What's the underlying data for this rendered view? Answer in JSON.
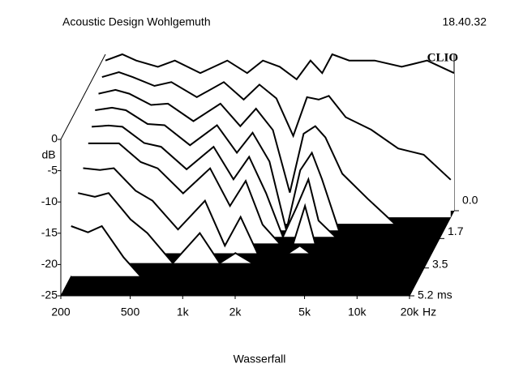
{
  "chart_data": {
    "type": "waterfall",
    "title": "Acoustic Design Wohlgemuth",
    "timestamp": "18.40.32",
    "logo": "CLIO",
    "caption": "Wasserfall",
    "x_unit": "Hz",
    "y_label": "dB",
    "z_unit": "ms",
    "xscale": "log",
    "xlim": [
      200,
      20000
    ],
    "xticks": [
      200,
      500,
      {
        "value": 1000,
        "label": "1k"
      },
      {
        "value": 2000,
        "label": "2k"
      },
      {
        "value": 5000,
        "label": "5k"
      },
      {
        "value": 10000,
        "label": "10k"
      },
      {
        "value": 20000,
        "label": "20k"
      }
    ],
    "ylim": [
      -25,
      0
    ],
    "yticks": [
      0,
      -5,
      -10,
      -15,
      -20,
      -25
    ],
    "zlim": [
      0,
      5.2
    ],
    "zticks": [
      {
        "value": 0,
        "label": "0.0"
      },
      1.7,
      3.5,
      5.2
    ],
    "color": "#000000",
    "floor_color": "#000000",
    "x": [
      200,
      250,
      300,
      400,
      500,
      700,
      1000,
      1300,
      1600,
      2000,
      2500,
      3000,
      3500,
      4000,
      5000,
      7000,
      10000,
      14000,
      20000
    ],
    "series": [
      {
        "t": 0,
        "values": [
          -1,
          0,
          -1,
          -2,
          -1,
          -3,
          -1,
          -3,
          -1,
          -2,
          -4,
          -1,
          -3,
          0,
          -1,
          -1,
          -2,
          -1,
          -3
        ]
      },
      {
        "t": 0.4,
        "values": [
          -2.6,
          -1.8,
          -2.6,
          -4,
          -3.4,
          -5.8,
          -3.4,
          -6.2,
          -3.8,
          -6,
          -12,
          -5.8,
          -6.2,
          -5.6,
          -9,
          -11,
          -14,
          -15,
          -19
        ]
      },
      {
        "t": 0.8,
        "values": [
          -4.2,
          -3.6,
          -4.2,
          -6,
          -5.8,
          -8.6,
          -5.8,
          -9.4,
          -6.6,
          -10,
          -20,
          -10.6,
          -9.4,
          -11.2,
          -17,
          -21,
          -25,
          -25,
          -25
        ]
      },
      {
        "t": 1.2,
        "values": [
          -5.8,
          -5.4,
          -5.8,
          -8,
          -8.2,
          -11.4,
          -8.2,
          -12.6,
          -9.4,
          -14,
          -25,
          -15.4,
          -12.6,
          -16.8,
          -25,
          -25,
          -25,
          -25,
          -25
        ]
      },
      {
        "t": 1.6,
        "values": [
          -7.4,
          -7.2,
          -7.4,
          -10,
          -10.6,
          -14.2,
          -10.6,
          -15.8,
          -12.2,
          -18,
          -25,
          -20.2,
          -15.8,
          -22.4,
          -25,
          -25,
          -25,
          -25,
          -25
        ]
      },
      {
        "t": 2.0,
        "values": [
          -9,
          -9,
          -9,
          -12,
          -13,
          -17,
          -13,
          -19,
          -15,
          -22,
          -25,
          -25,
          -19,
          -25,
          -25,
          -25,
          -25,
          -25,
          -25
        ]
      },
      {
        "t": 2.6,
        "values": [
          -11.4,
          -11.7,
          -11.4,
          -15,
          -16.6,
          -21.2,
          -16.6,
          -23.8,
          -19.2,
          -25,
          -25,
          -25,
          -23.8,
          -25,
          -25,
          -25,
          -25,
          -25,
          -25
        ]
      },
      {
        "t": 3.2,
        "values": [
          -13.8,
          -14.4,
          -13.8,
          -18,
          -20.2,
          -25,
          -20.2,
          -25,
          -23.4,
          -25,
          -25,
          -25,
          -25,
          -25,
          -25,
          -25,
          -25,
          -25,
          -25
        ]
      },
      {
        "t": 4.0,
        "values": [
          -17,
          -18,
          -17,
          -22,
          -25,
          -25,
          -25,
          -25,
          -25,
          -25,
          -25,
          -25,
          -25,
          -25,
          -25,
          -25,
          -25,
          -25,
          -25
        ]
      }
    ]
  }
}
